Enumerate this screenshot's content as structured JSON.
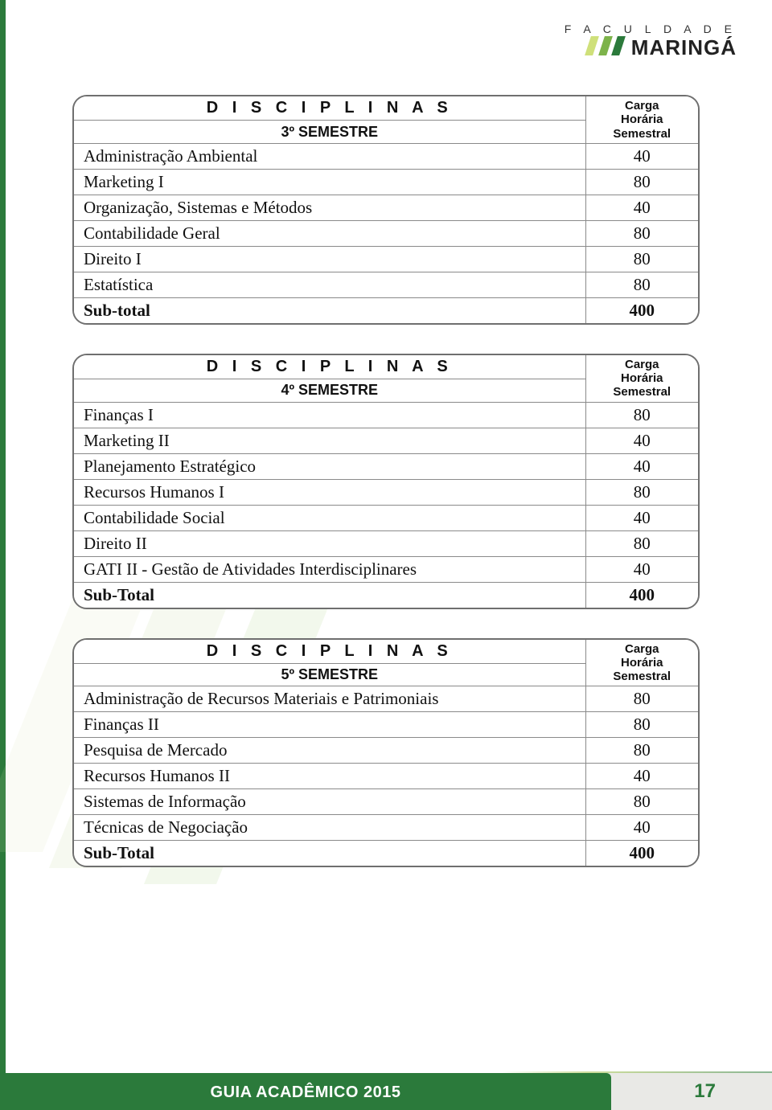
{
  "logo": {
    "line1": "F A C U L D A D E",
    "name": "MARINGÁ",
    "bar_colors": [
      "#cfe07a",
      "#7db34a",
      "#2b7a3b"
    ]
  },
  "watermark": {
    "bar_colors": [
      "#d9e6b0",
      "#bcd68a",
      "#9cc86a"
    ]
  },
  "tables": [
    {
      "disciplinas_label": "D I S C I P L I N A S",
      "semester_label": "3º SEMESTRE",
      "carga_label": "Carga\nHorária\nSemestral",
      "rows": [
        {
          "name": "Administração Ambiental",
          "value": "40"
        },
        {
          "name": "Marketing I",
          "value": "80"
        },
        {
          "name": "Organização, Sistemas e Métodos",
          "value": "40"
        },
        {
          "name": "Contabilidade Geral",
          "value": "80"
        },
        {
          "name": "Direito I",
          "value": "80"
        },
        {
          "name": "Estatística",
          "value": "80"
        }
      ],
      "total_label": "Sub-total",
      "total_value": "400"
    },
    {
      "disciplinas_label": "D I S C I P L I N A S",
      "semester_label": "4º SEMESTRE",
      "carga_label": "Carga\nHorária\nSemestral",
      "rows": [
        {
          "name": "Finanças I",
          "value": "80"
        },
        {
          "name": "Marketing II",
          "value": "40"
        },
        {
          "name": "Planejamento Estratégico",
          "value": "40"
        },
        {
          "name": "Recursos Humanos I",
          "value": "80"
        },
        {
          "name": "Contabilidade Social",
          "value": "40"
        },
        {
          "name": "Direito II",
          "value": "80"
        },
        {
          "name": "GATI II - Gestão de Atividades Interdisciplinares",
          "value": "40"
        }
      ],
      "total_label": "Sub-Total",
      "total_value": "400"
    },
    {
      "disciplinas_label": "D I S C I P L I N A S",
      "semester_label": "5º SEMESTRE",
      "carga_label": "Carga\nHorária\nSemestral",
      "rows": [
        {
          "name": "Administração de Recursos Materiais e Patrimoniais",
          "value": "80"
        },
        {
          "name": "Finanças II",
          "value": "80"
        },
        {
          "name": "Pesquisa de Mercado",
          "value": "80"
        },
        {
          "name": "Recursos Humanos II",
          "value": "40"
        },
        {
          "name": "Sistemas de Informação",
          "value": "80"
        },
        {
          "name": "Técnicas de Negociação",
          "value": "40"
        }
      ],
      "total_label": "Sub-Total",
      "total_value": "400"
    }
  ],
  "footer": {
    "title": "GUIA ACADÊMICO 2015",
    "page": "17",
    "bar_color": "#2b7a3b",
    "grey_color": "#e9e9e6",
    "page_color": "#2b7a3b"
  },
  "style": {
    "border_color": "#6f6f6f",
    "cell_border_color": "#8a8a8a",
    "row_font": "Georgia, 'Times New Roman', serif",
    "header_font": "Arial, Helvetica, sans-serif"
  }
}
